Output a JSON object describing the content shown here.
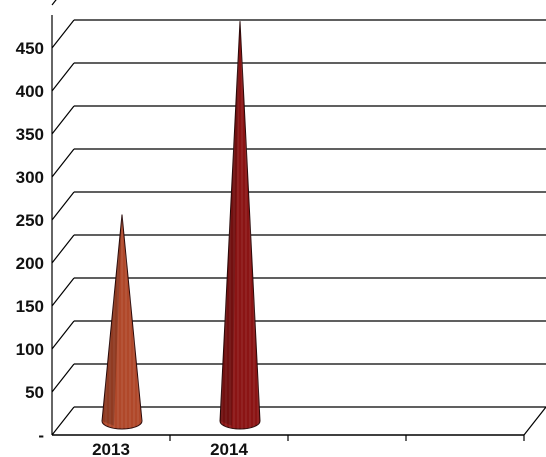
{
  "chart_data": {
    "type": "bar",
    "style": "3d-cone",
    "categories": [
      "2013",
      "2014"
    ],
    "series": [
      {
        "values": [
          240,
          465
        ]
      }
    ],
    "colors": [
      "#b0482a",
      "#8b1414"
    ],
    "ylim": [
      0,
      450
    ],
    "y_ticks": [
      "-",
      "50",
      "100",
      "150",
      "200",
      "250",
      "300",
      "350",
      "400",
      "450"
    ],
    "grid": true,
    "legend": "none"
  }
}
